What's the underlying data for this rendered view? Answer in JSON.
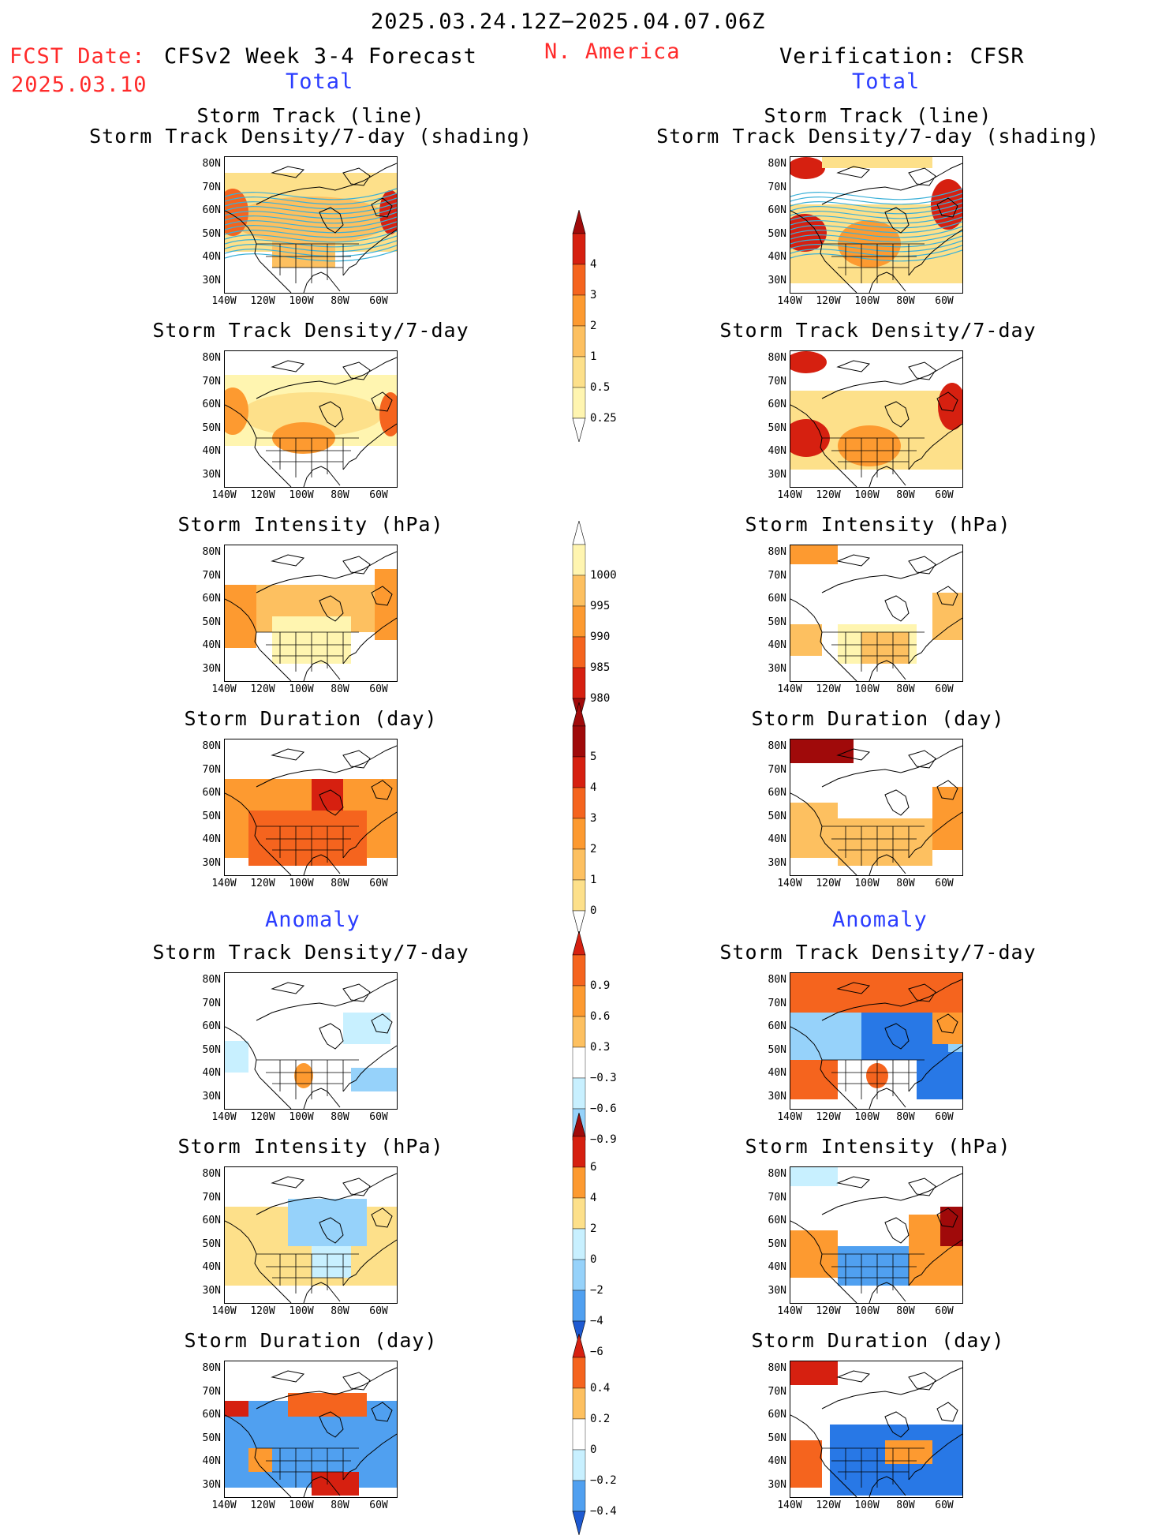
{
  "header": {
    "date_range": "2025.03.24.12Z−2025.04.07.06Z",
    "fcst_date_label": "FCST Date:",
    "fcst_date": "2025.03.10",
    "forecast_title": "CFSv2 Week 3-4 Forecast",
    "region": "N. America",
    "verification": "Verification: CFSR",
    "total_left": "Total",
    "total_right": "Total",
    "anomaly_left": "Anomaly",
    "anomaly_right": "Anomaly"
  },
  "panels": {
    "track_line": "Storm Track (line)",
    "track_shading": "Storm Track Density/7-day (shading)",
    "density": "Storm Track Density/7-day",
    "intensity": "Storm Intensity (hPa)",
    "duration": "Storm Duration (day)"
  },
  "axes": {
    "lat": [
      "80N",
      "70N",
      "60N",
      "50N",
      "40N",
      "30N"
    ],
    "lon": [
      "140W",
      "120W",
      "100W",
      "80W",
      "60W"
    ]
  },
  "colorbars": {
    "density_total": [
      "4",
      "3",
      "2",
      "1",
      "0.5",
      "0.25"
    ],
    "intensity_total": [
      "1000",
      "995",
      "990",
      "985",
      "980"
    ],
    "duration_total": [
      "5",
      "4",
      "3",
      "2",
      "1",
      "0"
    ],
    "density_anom": [
      "0.9",
      "0.6",
      "0.3",
      "−0.3",
      "−0.6",
      "−0.9"
    ],
    "intensity_anom": [
      "6",
      "4",
      "2",
      "0",
      "−2",
      "−4",
      "−6"
    ],
    "duration_anom": [
      "0.4",
      "0.2",
      "0",
      "−0.2",
      "−0.4"
    ]
  },
  "colors": {
    "warm": [
      "#fff5b0",
      "#fde08a",
      "#fdc060",
      "#fd9a30",
      "#f5641e",
      "#d62010",
      "#a00a0a"
    ],
    "cool": [
      "#c8f0ff",
      "#96d2fa",
      "#50a0f0",
      "#2878e6",
      "#1e5ad2"
    ]
  }
}
